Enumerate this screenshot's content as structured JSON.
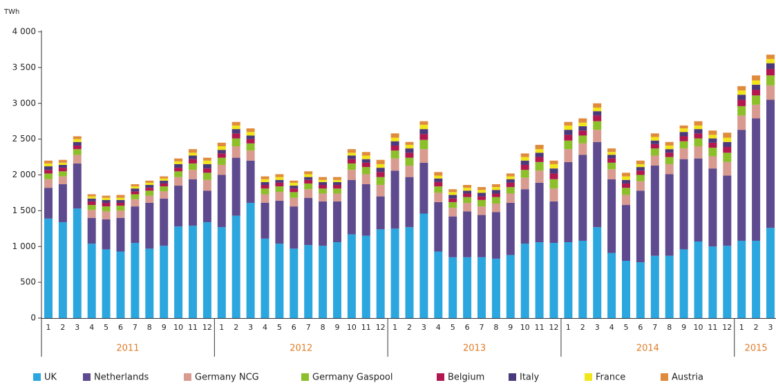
{
  "chart_data": {
    "type": "stacked-bar",
    "y_label": "TWh",
    "groups": [
      {
        "label": "2011",
        "categories": [
          "1",
          "2",
          "3",
          "4",
          "5",
          "6",
          "7",
          "8",
          "9",
          "10",
          "11",
          "12"
        ]
      },
      {
        "label": "2012",
        "categories": [
          "1",
          "2",
          "3",
          "4",
          "5",
          "6",
          "7",
          "8",
          "9",
          "10",
          "11",
          "12"
        ]
      },
      {
        "label": "2013",
        "categories": [
          "1",
          "2",
          "3",
          "4",
          "5",
          "6",
          "7",
          "8",
          "9",
          "10",
          "11",
          "12"
        ]
      },
      {
        "label": "2014",
        "categories": [
          "1",
          "2",
          "3",
          "4",
          "5",
          "6",
          "7",
          "8",
          "9",
          "10",
          "11",
          "12"
        ]
      },
      {
        "label": "2015",
        "categories": [
          "1",
          "2",
          "3"
        ]
      }
    ],
    "ylim": [
      0,
      4000
    ],
    "yticks": [
      0,
      500,
      {
        "value": 1000,
        "label": "1 000"
      },
      {
        "value": 1500,
        "label": "1 500"
      },
      {
        "value": 2000,
        "label": "2 000"
      },
      {
        "value": 2500,
        "label": "2 500"
      },
      {
        "value": 3000,
        "label": "3 000"
      },
      {
        "value": 3500,
        "label": "3 500"
      },
      {
        "value": 4000,
        "label": "4 000"
      }
    ],
    "series": [
      {
        "name": "UK",
        "color": "#2ba6de",
        "values": [
          1390,
          1340,
          1530,
          1040,
          960,
          930,
          1050,
          970,
          1010,
          1280,
          1290,
          1340,
          1270,
          1430,
          1610,
          1110,
          1040,
          970,
          1020,
          1010,
          1060,
          1170,
          1150,
          1240,
          1250,
          1270,
          1460,
          930,
          850,
          850,
          850,
          830,
          880,
          1040,
          1060,
          1050,
          1060,
          1080,
          1270,
          910,
          800,
          780,
          870,
          870,
          960,
          1070,
          1000,
          1010,
          1080,
          1080,
          1260
        ]
      },
      {
        "name": "Netherlands",
        "color": "#5e4a8e",
        "values": [
          430,
          530,
          630,
          360,
          420,
          470,
          510,
          640,
          660,
          570,
          650,
          440,
          730,
          810,
          590,
          500,
          600,
          590,
          660,
          620,
          570,
          760,
          720,
          460,
          810,
          700,
          710,
          690,
          570,
          640,
          590,
          650,
          730,
          760,
          830,
          580,
          1120,
          1200,
          1190,
          1030,
          780,
          1000,
          1260,
          1140,
          1260,
          1160,
          1090,
          980,
          1550,
          1710,
          1790
        ]
      },
      {
        "name": "Germany NCG",
        "color": "#d99b90",
        "values": [
          120,
          110,
          120,
          110,
          110,
          100,
          100,
          100,
          100,
          120,
          130,
          150,
          140,
          160,
          140,
          120,
          120,
          120,
          120,
          110,
          110,
          140,
          140,
          160,
          170,
          160,
          190,
          130,
          120,
          120,
          120,
          120,
          130,
          160,
          170,
          180,
          180,
          160,
          170,
          140,
          140,
          130,
          140,
          140,
          150,
          170,
          170,
          190,
          200,
          190,
          200
        ]
      },
      {
        "name": "Germany Gaspool",
        "color": "#8dbf2b",
        "values": [
          80,
          70,
          80,
          70,
          70,
          70,
          70,
          70,
          70,
          80,
          90,
          100,
          100,
          110,
          100,
          80,
          80,
          80,
          80,
          70,
          70,
          90,
          100,
          110,
          110,
          110,
          130,
          90,
          80,
          80,
          90,
          90,
          90,
          110,
          120,
          130,
          120,
          110,
          120,
          90,
          100,
          90,
          100,
          100,
          100,
          110,
          120,
          130,
          130,
          130,
          140
        ]
      },
      {
        "name": "Belgium",
        "color": "#b2174f",
        "values": [
          50,
          50,
          50,
          50,
          50,
          40,
          40,
          40,
          40,
          50,
          60,
          60,
          60,
          70,
          60,
          50,
          50,
          50,
          50,
          50,
          50,
          60,
          60,
          70,
          70,
          70,
          80,
          60,
          50,
          50,
          50,
          50,
          60,
          70,
          70,
          80,
          80,
          70,
          80,
          60,
          60,
          60,
          60,
          60,
          70,
          70,
          70,
          80,
          90,
          80,
          90
        ]
      },
      {
        "name": "Italy",
        "color": "#4a3a7c",
        "values": [
          50,
          40,
          50,
          40,
          40,
          40,
          40,
          40,
          40,
          50,
          50,
          60,
          50,
          60,
          50,
          40,
          40,
          40,
          40,
          40,
          40,
          50,
          50,
          60,
          60,
          60,
          70,
          50,
          50,
          40,
          50,
          50,
          50,
          60,
          60,
          70,
          70,
          60,
          60,
          50,
          50,
          50,
          50,
          50,
          60,
          60,
          60,
          70,
          70,
          70,
          80
        ]
      },
      {
        "name": "France",
        "color": "#f1e51b",
        "values": [
          40,
          30,
          40,
          30,
          30,
          30,
          30,
          30,
          30,
          40,
          40,
          50,
          50,
          50,
          50,
          40,
          40,
          40,
          40,
          30,
          30,
          40,
          50,
          50,
          50,
          50,
          60,
          40,
          40,
          40,
          40,
          40,
          40,
          50,
          50,
          60,
          60,
          50,
          50,
          40,
          50,
          40,
          50,
          50,
          50,
          50,
          50,
          60,
          60,
          60,
          60
        ]
      },
      {
        "name": "Austria",
        "color": "#e08b3c",
        "values": [
          40,
          40,
          40,
          30,
          30,
          40,
          30,
          30,
          30,
          40,
          50,
          40,
          50,
          50,
          50,
          40,
          40,
          30,
          40,
          40,
          40,
          50,
          50,
          60,
          60,
          40,
          50,
          50,
          40,
          40,
          40,
          40,
          40,
          50,
          60,
          50,
          50,
          60,
          60,
          50,
          50,
          50,
          50,
          50,
          40,
          60,
          60,
          70,
          60,
          70,
          60
        ]
      }
    ]
  }
}
